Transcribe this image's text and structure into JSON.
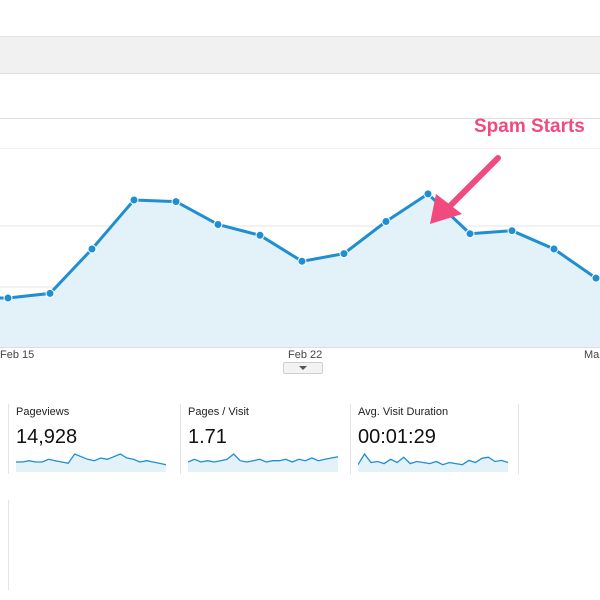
{
  "annotation": {
    "text": "Spam Starts"
  },
  "chart_data": {
    "type": "area",
    "x_ticks": [
      "Feb 15",
      "Feb 22",
      "Mar"
    ],
    "series": [
      {
        "values": [
          32,
          35,
          64,
          96,
          95,
          80,
          73,
          56,
          61,
          82,
          100,
          74,
          76,
          64,
          45
        ]
      }
    ],
    "color": "#1f8fd1",
    "fill": "#e3f1f9",
    "ylim": [
      0,
      130
    ],
    "grid": true
  },
  "metrics": [
    {
      "label": "Pageviews",
      "value": "14,928",
      "spark": [
        6,
        6,
        7,
        6,
        6,
        8,
        7,
        6,
        5,
        12,
        10,
        8,
        7,
        9,
        8,
        10,
        12,
        9,
        8,
        6,
        7,
        6,
        5,
        4
      ]
    },
    {
      "label": "Pages / Visit",
      "value": "1.71",
      "spark": [
        6,
        8,
        6,
        7,
        6,
        7,
        8,
        12,
        7,
        6,
        7,
        8,
        6,
        7,
        7,
        8,
        6,
        8,
        7,
        9,
        7,
        8,
        9,
        10
      ]
    },
    {
      "label": "Avg. Visit Duration",
      "value": "00:01:29",
      "spark": [
        5,
        15,
        7,
        8,
        6,
        10,
        7,
        12,
        6,
        8,
        7,
        6,
        8,
        5,
        7,
        6,
        5,
        9,
        7,
        11,
        12,
        8,
        9,
        7
      ]
    }
  ],
  "colors": {
    "accent": "#1f8fd1",
    "annotation": "#f04a7e"
  }
}
